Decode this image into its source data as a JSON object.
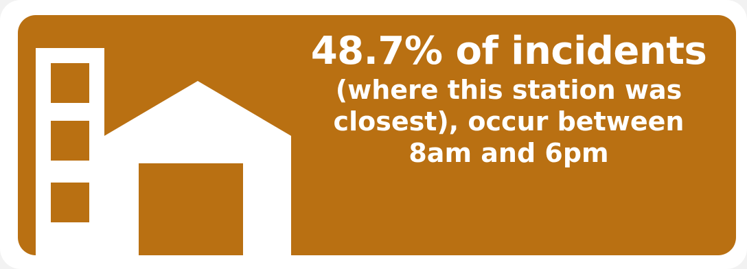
{
  "stat": {
    "headline": "48.7% of incidents",
    "lines": [
      "(where this station was",
      "closest), occur between",
      "8am and 6pm"
    ]
  },
  "icon": {
    "name": "fire-station-icon"
  },
  "colors": {
    "card_background": "#b97012",
    "text": "#ffffff",
    "outer_background": "#ffffff"
  }
}
